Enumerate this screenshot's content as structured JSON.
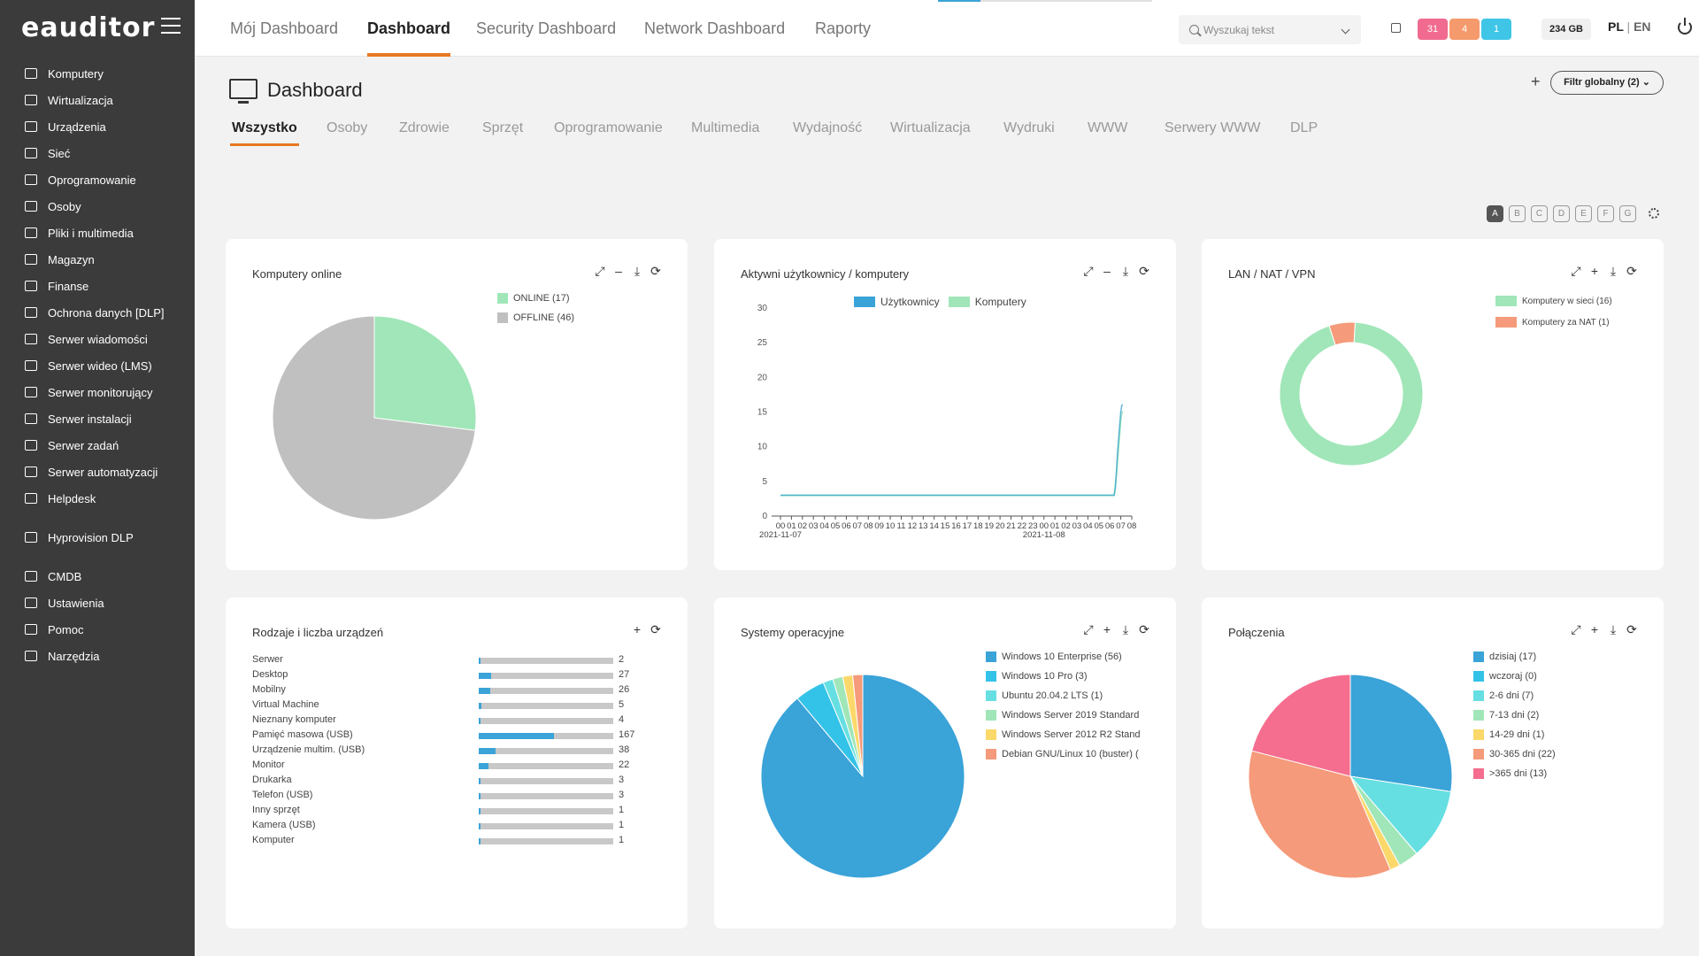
{
  "app": {
    "logo": "eauditor"
  },
  "sidebar": {
    "items": [
      {
        "label": "Komputery",
        "icon": "computer-icon"
      },
      {
        "label": "Wirtualizacja",
        "icon": "server-stack-icon"
      },
      {
        "label": "Urządzenia",
        "icon": "devices-icon"
      },
      {
        "label": "Sieć",
        "icon": "network-icon"
      },
      {
        "label": "Oprogramowanie",
        "icon": "software-icon"
      },
      {
        "label": "Osoby",
        "icon": "users-icon"
      },
      {
        "label": "Pliki i multimedia",
        "icon": "file-icon"
      },
      {
        "label": "Magazyn",
        "icon": "warehouse-icon"
      },
      {
        "label": "Finanse",
        "icon": "finance-icon"
      },
      {
        "label": "Ochrona danych [DLP]",
        "icon": "shield-icon"
      },
      {
        "label": "Serwer wiadomości",
        "icon": "message-icon"
      },
      {
        "label": "Serwer wideo (LMS)",
        "icon": "video-icon"
      },
      {
        "label": "Serwer monitorujący",
        "icon": "monitor-chart-icon"
      },
      {
        "label": "Serwer instalacji",
        "icon": "install-icon"
      },
      {
        "label": "Serwer zadań",
        "icon": "tasks-icon"
      },
      {
        "label": "Serwer automatyzacji",
        "icon": "automation-icon"
      },
      {
        "label": "Helpdesk",
        "icon": "helpdesk-icon"
      },
      {
        "label": "Hyprovision DLP",
        "icon": "user-key-icon"
      },
      {
        "label": "CMDB",
        "icon": "database-icon"
      },
      {
        "label": "Ustawienia",
        "icon": "gear-icon"
      },
      {
        "label": "Pomoc",
        "icon": "help-icon"
      },
      {
        "label": "Narzędzia",
        "icon": "tools-icon"
      }
    ]
  },
  "topnav": {
    "items": [
      "Mój Dashboard",
      "Dashboard",
      "Security Dashboard",
      "Network Dashboard",
      "Raporty"
    ],
    "active": "Dashboard",
    "search_placeholder": "Wyszukaj tekst",
    "badges": [
      {
        "value": "31",
        "color": "#f06b8f"
      },
      {
        "value": "4",
        "color": "#f59a6c"
      },
      {
        "value": "1",
        "color": "#3fc6e6"
      }
    ],
    "storage": "234 GB",
    "lang_pl": "PL",
    "lang_sep": "|",
    "lang_en": "EN"
  },
  "page": {
    "title": "Dashboard",
    "add_label": "+",
    "global_filter": "Filtr globalny (2)",
    "tabs": [
      "Wszystko",
      "Osoby",
      "Zdrowie",
      "Sprzęt",
      "Oprogramowanie",
      "Multimedia",
      "Wydajność",
      "Wirtualizacja",
      "Wydruki",
      "WWW",
      "Serwery WWW",
      "DLP"
    ],
    "active_tab": "Wszystko",
    "layouts": [
      "A",
      "B",
      "C",
      "D",
      "E",
      "F",
      "G"
    ],
    "active_layout": "A"
  },
  "colors": {
    "accent": "#e87722",
    "blue": "#3aa3d8",
    "green": "#a0e6b8",
    "gray": "#c0c0c0",
    "salmon": "#f59a7a"
  },
  "chart_data": [
    {
      "type": "pie",
      "title": "Komputery online",
      "slices": [
        {
          "label": "ONLINE (17)",
          "value": 17,
          "color": "#a0e6b8"
        },
        {
          "label": "OFFLINE (46)",
          "value": 46,
          "color": "#c0c0c0"
        }
      ]
    },
    {
      "type": "line",
      "title": "Aktywni użytkownicy / komputery",
      "series": [
        {
          "name": "Użytkownicy",
          "color": "#3aa3d8",
          "values": [
            3,
            3,
            3,
            3,
            3,
            3,
            3,
            3,
            3,
            3,
            3,
            3,
            3,
            3,
            3,
            3,
            3,
            3,
            3,
            3,
            3,
            3,
            3,
            3,
            3,
            3,
            3,
            3,
            3,
            3,
            3,
            3,
            3,
            3,
            3,
            3,
            3,
            3,
            3,
            3,
            3,
            3,
            3,
            3,
            3,
            3,
            3,
            3,
            3,
            3,
            3,
            3,
            3,
            3,
            3,
            3,
            3,
            3,
            3,
            3,
            3,
            3,
            3,
            3,
            3,
            3,
            3,
            3,
            3,
            3,
            3,
            3,
            3,
            3,
            3,
            3,
            3,
            3,
            3,
            3,
            3,
            3,
            3,
            3,
            3,
            3,
            3,
            3,
            3,
            3,
            3,
            3,
            3,
            3,
            3,
            3,
            3,
            3,
            3,
            3,
            3,
            3,
            3,
            3,
            3,
            3,
            3,
            3,
            3,
            3,
            3,
            3,
            3,
            3,
            3,
            3,
            3,
            3,
            3,
            3,
            3,
            3,
            3,
            3,
            3,
            3,
            3,
            3,
            3,
            3,
            3,
            3,
            3,
            3,
            3,
            3,
            3,
            3,
            3,
            3,
            3,
            3,
            3,
            3,
            3,
            3,
            3,
            3,
            3,
            3,
            3,
            3,
            3,
            3,
            3,
            3,
            3,
            3,
            3,
            3,
            3,
            3,
            3,
            3,
            3,
            3,
            3,
            3,
            3,
            3,
            3,
            3,
            3,
            3,
            3,
            3,
            3,
            3,
            3,
            3,
            3,
            3,
            3,
            3,
            3,
            3,
            3,
            3,
            3,
            3,
            3,
            3,
            3,
            3,
            3,
            3,
            3,
            3,
            3,
            3,
            3,
            3,
            3,
            3,
            3,
            3,
            3,
            3,
            3,
            3,
            3,
            3,
            3,
            3,
            3,
            3,
            3,
            3,
            3,
            3,
            3,
            3,
            3,
            3,
            3,
            3,
            3,
            3,
            3,
            3,
            3,
            3,
            3,
            3,
            3,
            3,
            3,
            3,
            3,
            3,
            3,
            3,
            3,
            3,
            3,
            3,
            3,
            3,
            3,
            3,
            3,
            3,
            3,
            3,
            3,
            3,
            3,
            3,
            3,
            3,
            3,
            3,
            3,
            3,
            3,
            3,
            3,
            3,
            3,
            3,
            3,
            3,
            3,
            3,
            3,
            3,
            3,
            3,
            3,
            3,
            3,
            3,
            3,
            3,
            3,
            3,
            3,
            3,
            3,
            3,
            3,
            3,
            3,
            3,
            3,
            3,
            3,
            3,
            3,
            3,
            3,
            3,
            3,
            3,
            4,
            6,
            9,
            11,
            13,
            15,
            16,
            16
          ]
        },
        {
          "name": "Komputery",
          "color": "#a0e6b8",
          "values": [
            3,
            3,
            3,
            3,
            3,
            3,
            3,
            3,
            3,
            3,
            3,
            3,
            3,
            3,
            3,
            3,
            3,
            3,
            3,
            3,
            3,
            3,
            3,
            3,
            3,
            3,
            3,
            3,
            3,
            3,
            3,
            3,
            3,
            3,
            3,
            3,
            3,
            3,
            3,
            3,
            3,
            3,
            3,
            3,
            3,
            3,
            3,
            3,
            3,
            3,
            3,
            3,
            3,
            3,
            3,
            3,
            3,
            3,
            3,
            3,
            3,
            3,
            3,
            3,
            3,
            3,
            3,
            3,
            3,
            3,
            3,
            3,
            3,
            3,
            3,
            3,
            3,
            3,
            3,
            3,
            3,
            3,
            3,
            3,
            3,
            3,
            3,
            3,
            3,
            3,
            3,
            3,
            3,
            3,
            3,
            3,
            3,
            3,
            3,
            3,
            3,
            3,
            3,
            3,
            3,
            3,
            3,
            3,
            3,
            3,
            3,
            3,
            3,
            3,
            3,
            3,
            3,
            3,
            3,
            3,
            3,
            3,
            3,
            3,
            3,
            3,
            3,
            3,
            3,
            3,
            3,
            3,
            3,
            3,
            3,
            3,
            3,
            3,
            3,
            3,
            3,
            3,
            3,
            3,
            3,
            3,
            3,
            3,
            3,
            3,
            3,
            3,
            3,
            3,
            3,
            3,
            3,
            3,
            3,
            3,
            3,
            3,
            3,
            3,
            3,
            3,
            3,
            3,
            3,
            3,
            3,
            3,
            3,
            3,
            3,
            3,
            3,
            3,
            3,
            3,
            3,
            3,
            3,
            3,
            3,
            3,
            3,
            3,
            3,
            3,
            3,
            3,
            3,
            3,
            3,
            3,
            3,
            3,
            3,
            3,
            3,
            3,
            3,
            3,
            3,
            3,
            3,
            3,
            3,
            3,
            3,
            3,
            3,
            3,
            3,
            3,
            3,
            3,
            3,
            3,
            3,
            3,
            3,
            3,
            3,
            3,
            3,
            3,
            3,
            3,
            3,
            3,
            3,
            3,
            3,
            3,
            3,
            3,
            3,
            3,
            3,
            3,
            3,
            3,
            3,
            3,
            3,
            3,
            3,
            3,
            3,
            3,
            3,
            3,
            3,
            3,
            3,
            3,
            3,
            3,
            3,
            3,
            3,
            3,
            3,
            3,
            3,
            3,
            3,
            3,
            3,
            3,
            3,
            3,
            3,
            3,
            3,
            3,
            3,
            3,
            3,
            3,
            3,
            3,
            3,
            3,
            3,
            3,
            3,
            3,
            3,
            3,
            3,
            3,
            3,
            3,
            3,
            3,
            3,
            3,
            3,
            3,
            3,
            3,
            3,
            4,
            6,
            8,
            10,
            12,
            14,
            15,
            15
          ]
        }
      ],
      "x_tick_labels": [
        "00",
        "01",
        "02",
        "03",
        "04",
        "05",
        "06",
        "07",
        "08",
        "09",
        "10",
        "11",
        "12",
        "13",
        "14",
        "15",
        "16",
        "17",
        "18",
        "19",
        "20",
        "21",
        "22",
        "23",
        "00",
        "01",
        "02",
        "03",
        "04",
        "05",
        "06",
        "07",
        "08"
      ],
      "x_date_labels": [
        "2021-11-07",
        "2021-11-08"
      ],
      "y_ticks": [
        0,
        5,
        10,
        15,
        20,
        25,
        30
      ],
      "ylim": [
        0,
        30
      ]
    },
    {
      "type": "pie",
      "title": "LAN / NAT / VPN",
      "donut": true,
      "slices": [
        {
          "label": "Komputery w sieci (16)",
          "value": 16,
          "color": "#a0e6b8"
        },
        {
          "label": "Komputery za NAT (1)",
          "value": 1,
          "color": "#f59a7a"
        }
      ]
    },
    {
      "type": "bar",
      "title": "Rodzaje i liczba urządzeń",
      "categories": [
        "Serwer",
        "Desktop",
        "Mobilny",
        "Virtual Machine",
        "Nieznany komputer",
        "Pamięć masowa (USB)",
        "Urządzenie multim. (USB)",
        "Monitor",
        "Drukarka",
        "Telefon (USB)",
        "Inny sprzęt",
        "Kamera (USB)",
        "Komputer"
      ],
      "values": [
        2,
        27,
        26,
        5,
        4,
        167,
        38,
        22,
        3,
        3,
        1,
        1,
        1
      ],
      "value_labels": [
        "2",
        "27",
        "26",
        "5",
        "4",
        "167",
        "38",
        "22",
        "3",
        "3",
        "1",
        "1",
        "1"
      ],
      "xlim": [
        0,
        300
      ]
    },
    {
      "type": "pie",
      "title": "Systemy operacyjne",
      "slices": [
        {
          "label": "Windows 10 Enterprise (56)",
          "value": 56,
          "color": "#3aa3d8"
        },
        {
          "label": "Windows 10 Pro (3)",
          "value": 3,
          "color": "#33c3e8"
        },
        {
          "label": "Ubuntu 20.04.2 LTS (1)",
          "value": 1,
          "color": "#66dfe2"
        },
        {
          "label": "Windows Server 2019 Standard",
          "value": 1,
          "color": "#a0e6b8"
        },
        {
          "label": "Windows Server 2012 R2 Stand",
          "value": 1,
          "color": "#fbd86a"
        },
        {
          "label": "Debian GNU/Linux 10 (buster) (",
          "value": 1,
          "color": "#f59a7a"
        }
      ]
    },
    {
      "type": "pie",
      "title": "Połączenia",
      "slices": [
        {
          "label": "dzisiaj (17)",
          "value": 17,
          "color": "#3aa3d8"
        },
        {
          "label": "wczoraj (0)",
          "value": 0,
          "color": "#33c3e8"
        },
        {
          "label": "2-6 dni (7)",
          "value": 7,
          "color": "#66dfe2"
        },
        {
          "label": "7-13 dni (2)",
          "value": 2,
          "color": "#a0e6b8"
        },
        {
          "label": "14-29 dni (1)",
          "value": 1,
          "color": "#fbd86a"
        },
        {
          "label": "30-365 dni (22)",
          "value": 22,
          "color": "#f59a7a"
        },
        {
          "label": ">365 dni (13)",
          "value": 13,
          "color": "#f56d8f"
        }
      ]
    }
  ]
}
